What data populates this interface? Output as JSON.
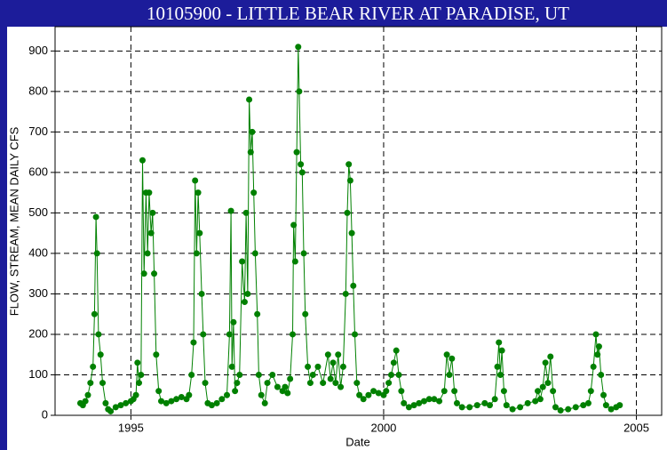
{
  "chart_data": {
    "type": "line",
    "title": "10105900 - LITTLE BEAR RIVER AT PARADISE, UT",
    "x_label": "Date",
    "y_label": "FLOW, STREAM, MEAN DAILY CFS",
    "xlim": [
      1993.5,
      2005.5
    ],
    "xticks": [
      1995,
      2000,
      2005
    ],
    "ylim": [
      0,
      960
    ],
    "yticks": [
      0,
      100,
      200,
      300,
      400,
      500,
      600,
      700,
      800,
      900
    ],
    "grid": true,
    "series": [
      {
        "name": "FLOW",
        "color": "#008000",
        "x": [
          1994.0,
          1994.05,
          1994.1,
          1994.15,
          1994.2,
          1994.25,
          1994.28,
          1994.31,
          1994.33,
          1994.36,
          1994.4,
          1994.44,
          1994.5,
          1994.55,
          1994.6,
          1994.7,
          1994.8,
          1994.9,
          1995.0,
          1995.05,
          1995.1,
          1995.13,
          1995.16,
          1995.2,
          1995.23,
          1995.26,
          1995.3,
          1995.33,
          1995.36,
          1995.4,
          1995.43,
          1995.46,
          1995.5,
          1995.55,
          1995.6,
          1995.7,
          1995.8,
          1995.9,
          1996.0,
          1996.1,
          1996.15,
          1996.2,
          1996.24,
          1996.27,
          1996.3,
          1996.33,
          1996.36,
          1996.4,
          1996.43,
          1996.47,
          1996.52,
          1996.6,
          1996.7,
          1996.8,
          1996.9,
          1996.95,
          1996.98,
          1997.0,
          1997.03,
          1997.06,
          1997.1,
          1997.15,
          1997.2,
          1997.25,
          1997.28,
          1997.31,
          1997.34,
          1997.37,
          1997.4,
          1997.43,
          1997.46,
          1997.5,
          1997.53,
          1997.58,
          1997.65,
          1997.7,
          1997.8,
          1997.9,
          1998.0,
          1998.05,
          1998.1,
          1998.15,
          1998.2,
          1998.22,
          1998.25,
          1998.28,
          1998.31,
          1998.33,
          1998.36,
          1998.39,
          1998.42,
          1998.45,
          1998.5,
          1998.55,
          1998.6,
          1998.7,
          1998.8,
          1998.9,
          1998.95,
          1999.0,
          1999.05,
          1999.1,
          1999.15,
          1999.2,
          1999.25,
          1999.28,
          1999.31,
          1999.34,
          1999.37,
          1999.4,
          1999.43,
          1999.47,
          1999.52,
          1999.6,
          1999.7,
          1999.8,
          1999.9,
          2000.0,
          2000.05,
          2000.1,
          2000.15,
          2000.2,
          2000.25,
          2000.3,
          2000.35,
          2000.4,
          2000.5,
          2000.6,
          2000.7,
          2000.8,
          2000.9,
          2001.0,
          2001.1,
          2001.2,
          2001.25,
          2001.3,
          2001.35,
          2001.4,
          2001.45,
          2001.55,
          2001.7,
          2001.85,
          2002.0,
          2002.1,
          2002.2,
          2002.25,
          2002.28,
          2002.31,
          2002.34,
          2002.38,
          2002.43,
          2002.55,
          2002.7,
          2002.85,
          2003.0,
          2003.05,
          2003.1,
          2003.15,
          2003.2,
          2003.25,
          2003.3,
          2003.35,
          2003.4,
          2003.5,
          2003.65,
          2003.8,
          2003.95,
          2004.05,
          2004.1,
          2004.15,
          2004.2,
          2004.23,
          2004.26,
          2004.3,
          2004.35,
          2004.4,
          2004.5,
          2004.6,
          2004.67
        ],
        "values": [
          30,
          25,
          35,
          50,
          80,
          120,
          250,
          490,
          400,
          200,
          150,
          80,
          30,
          15,
          10,
          20,
          25,
          30,
          35,
          40,
          50,
          130,
          80,
          100,
          630,
          350,
          550,
          400,
          550,
          450,
          500,
          350,
          150,
          60,
          35,
          30,
          35,
          40,
          45,
          40,
          50,
          100,
          180,
          580,
          400,
          550,
          450,
          300,
          200,
          80,
          30,
          25,
          30,
          40,
          50,
          200,
          505,
          120,
          230,
          60,
          80,
          100,
          380,
          280,
          500,
          300,
          780,
          650,
          700,
          550,
          400,
          250,
          100,
          50,
          30,
          80,
          100,
          70,
          60,
          70,
          55,
          90,
          200,
          470,
          380,
          650,
          910,
          800,
          620,
          600,
          400,
          250,
          120,
          80,
          100,
          120,
          80,
          150,
          90,
          130,
          80,
          150,
          70,
          120,
          300,
          500,
          620,
          580,
          450,
          320,
          200,
          80,
          50,
          40,
          50,
          60,
          55,
          50,
          60,
          80,
          100,
          130,
          160,
          100,
          60,
          30,
          20,
          25,
          30,
          35,
          40,
          40,
          35,
          60,
          150,
          100,
          140,
          60,
          30,
          20,
          20,
          25,
          30,
          25,
          40,
          120,
          180,
          100,
          160,
          60,
          25,
          15,
          20,
          30,
          35,
          60,
          40,
          70,
          130,
          80,
          145,
          60,
          20,
          12,
          15,
          20,
          25,
          30,
          60,
          120,
          200,
          150,
          170,
          100,
          50,
          25,
          15,
          20,
          25
        ]
      }
    ]
  }
}
